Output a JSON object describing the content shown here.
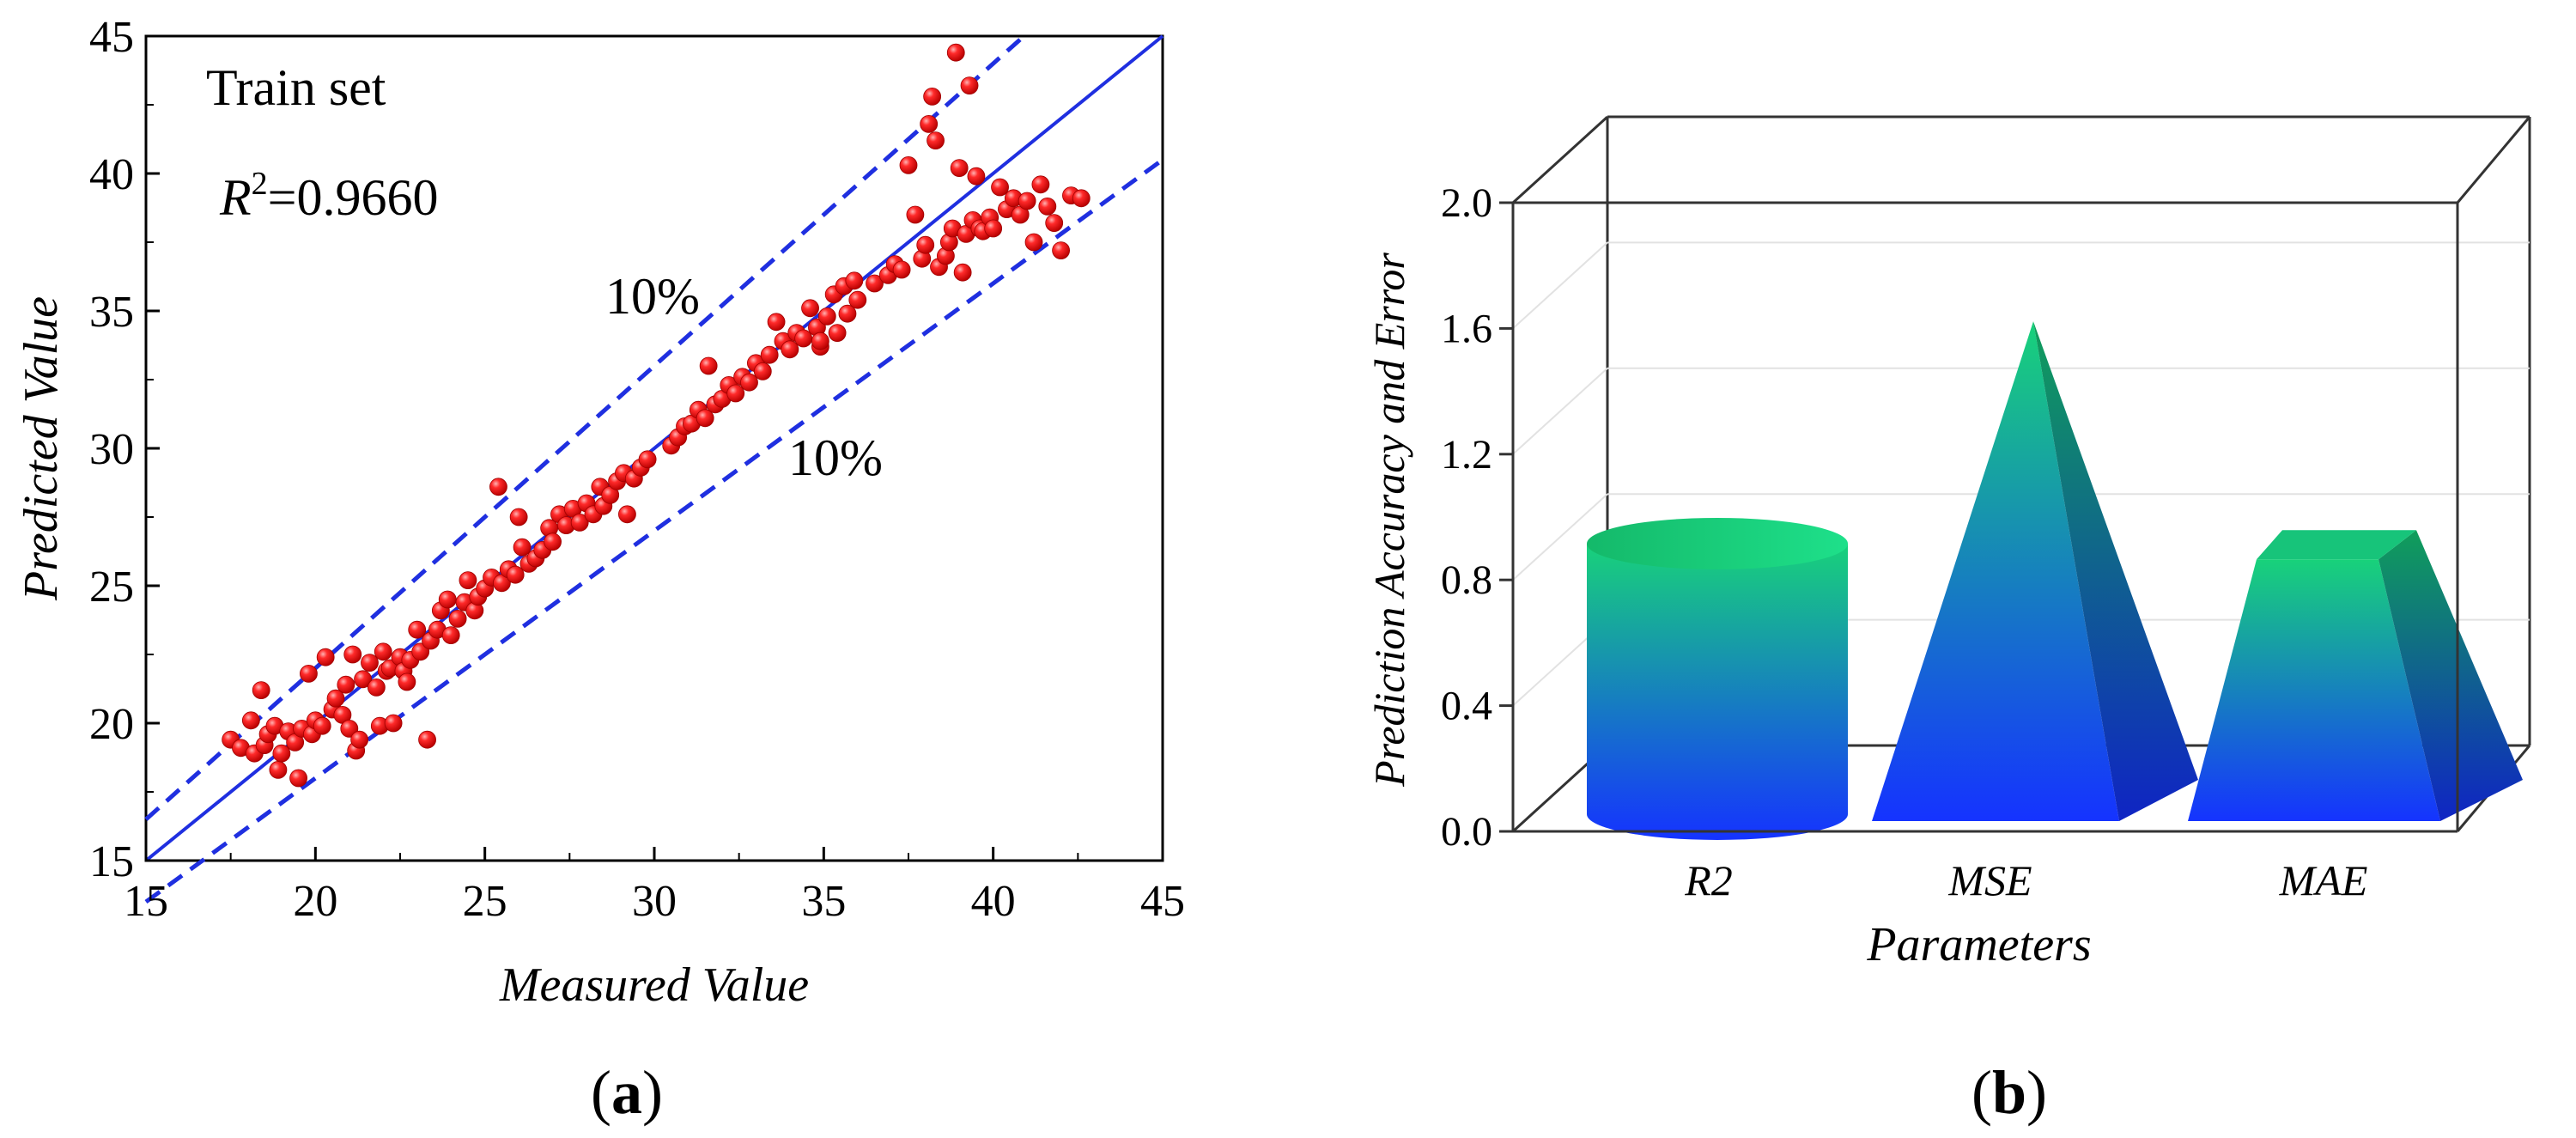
{
  "colors": {
    "points": "#ff1a1a",
    "fit_line": "#1f2fe0",
    "band_line": "#1f2fe0",
    "axis": "#000000",
    "bar_top": "#18d27a",
    "bar_bottom": "#1533ff"
  },
  "panels": {
    "a_label": "a",
    "b_label": "b"
  },
  "chart_data": [
    {
      "id": "a",
      "type": "scatter",
      "title": "Train set",
      "r2_symbol": "R",
      "r2_sup": "2",
      "r2_value": "=0.9660",
      "xlabel": "Measured Value",
      "ylabel": "Predicted Value",
      "xlim": [
        15,
        45
      ],
      "ylim": [
        15,
        45
      ],
      "xticks": [
        "15",
        "20",
        "25",
        "30",
        "35",
        "40",
        "45"
      ],
      "yticks": [
        "15",
        "20",
        "25",
        "30",
        "35",
        "40",
        "45"
      ],
      "band_upper_label": "10%",
      "band_lower_label": "10%",
      "lines": [
        {
          "name": "y=x",
          "style": "solid",
          "slope": 1.0
        },
        {
          "name": "+10%",
          "style": "dashed",
          "slope": 1.1
        },
        {
          "name": "-10%",
          "style": "dashed",
          "slope": 0.9
        }
      ],
      "points": [
        [
          17.5,
          19.4
        ],
        [
          17.8,
          19.1
        ],
        [
          18.1,
          20.1
        ],
        [
          18.2,
          18.9
        ],
        [
          18.4,
          21.2
        ],
        [
          18.5,
          19.2
        ],
        [
          18.6,
          19.6
        ],
        [
          18.8,
          19.9
        ],
        [
          18.9,
          18.3
        ],
        [
          19.0,
          18.9
        ],
        [
          19.2,
          19.7
        ],
        [
          19.4,
          19.3
        ],
        [
          19.5,
          18.0
        ],
        [
          19.6,
          19.8
        ],
        [
          19.8,
          21.8
        ],
        [
          19.9,
          19.6
        ],
        [
          20.0,
          20.1
        ],
        [
          20.2,
          19.9
        ],
        [
          20.3,
          22.4
        ],
        [
          20.5,
          20.5
        ],
        [
          20.6,
          20.9
        ],
        [
          20.8,
          20.3
        ],
        [
          20.9,
          21.4
        ],
        [
          21.0,
          19.8
        ],
        [
          21.1,
          22.5
        ],
        [
          21.2,
          19.0
        ],
        [
          21.3,
          19.4
        ],
        [
          21.4,
          21.6
        ],
        [
          21.6,
          22.2
        ],
        [
          21.8,
          21.3
        ],
        [
          21.9,
          19.9
        ],
        [
          22.0,
          22.6
        ],
        [
          22.1,
          21.9
        ],
        [
          22.2,
          22.0
        ],
        [
          22.3,
          20.0
        ],
        [
          22.5,
          22.4
        ],
        [
          22.6,
          21.9
        ],
        [
          22.8,
          22.3
        ],
        [
          23.0,
          23.4
        ],
        [
          23.1,
          22.6
        ],
        [
          23.3,
          19.4
        ],
        [
          23.4,
          23.0
        ],
        [
          23.6,
          23.4
        ],
        [
          23.7,
          24.1
        ],
        [
          23.9,
          24.5
        ],
        [
          24.0,
          23.2
        ],
        [
          24.2,
          23.8
        ],
        [
          24.4,
          24.4
        ],
        [
          24.5,
          25.2
        ],
        [
          24.7,
          24.1
        ],
        [
          24.8,
          24.6
        ],
        [
          25.0,
          24.9
        ],
        [
          25.2,
          25.3
        ],
        [
          25.4,
          28.6
        ],
        [
          25.5,
          25.1
        ],
        [
          25.7,
          25.6
        ],
        [
          25.9,
          25.4
        ],
        [
          26.0,
          27.5
        ],
        [
          26.1,
          26.4
        ],
        [
          26.3,
          25.8
        ],
        [
          26.5,
          26.0
        ],
        [
          26.7,
          26.3
        ],
        [
          26.9,
          27.1
        ],
        [
          27.0,
          26.6
        ],
        [
          27.2,
          27.6
        ],
        [
          27.4,
          27.2
        ],
        [
          27.6,
          27.8
        ],
        [
          27.8,
          27.3
        ],
        [
          28.0,
          28.0
        ],
        [
          28.2,
          27.6
        ],
        [
          28.4,
          28.6
        ],
        [
          28.5,
          27.9
        ],
        [
          28.7,
          28.3
        ],
        [
          28.9,
          28.8
        ],
        [
          29.1,
          29.1
        ],
        [
          29.2,
          27.6
        ],
        [
          29.4,
          28.9
        ],
        [
          29.6,
          29.3
        ],
        [
          29.8,
          29.6
        ],
        [
          30.5,
          30.1
        ],
        [
          30.7,
          30.4
        ],
        [
          30.9,
          30.8
        ],
        [
          31.1,
          30.9
        ],
        [
          31.3,
          31.4
        ],
        [
          31.5,
          31.1
        ],
        [
          31.6,
          33.0
        ],
        [
          31.8,
          31.6
        ],
        [
          32.0,
          31.8
        ],
        [
          32.2,
          32.3
        ],
        [
          32.4,
          32.0
        ],
        [
          32.6,
          32.6
        ],
        [
          32.8,
          32.4
        ],
        [
          33.0,
          33.1
        ],
        [
          33.2,
          32.8
        ],
        [
          33.4,
          33.4
        ],
        [
          33.6,
          34.6
        ],
        [
          33.8,
          33.9
        ],
        [
          34.0,
          33.6
        ],
        [
          34.2,
          34.2
        ],
        [
          34.4,
          34.0
        ],
        [
          34.6,
          35.1
        ],
        [
          34.8,
          34.4
        ],
        [
          34.9,
          33.7
        ],
        [
          35.1,
          34.8
        ],
        [
          35.3,
          35.6
        ],
        [
          35.4,
          34.2
        ],
        [
          35.6,
          35.9
        ],
        [
          35.7,
          34.9
        ],
        [
          35.9,
          36.1
        ],
        [
          36.0,
          35.4
        ],
        [
          36.5,
          36.0
        ],
        [
          36.9,
          36.3
        ],
        [
          37.1,
          36.7
        ],
        [
          37.3,
          36.5
        ],
        [
          37.5,
          40.3
        ],
        [
          37.7,
          38.5
        ],
        [
          37.9,
          36.9
        ],
        [
          38.0,
          37.4
        ],
        [
          38.1,
          41.8
        ],
        [
          38.2,
          42.8
        ],
        [
          38.3,
          41.2
        ],
        [
          38.4,
          36.6
        ],
        [
          38.6,
          37.0
        ],
        [
          38.7,
          37.5
        ],
        [
          38.8,
          38.0
        ],
        [
          38.9,
          44.4
        ],
        [
          39.0,
          40.2
        ],
        [
          39.1,
          36.4
        ],
        [
          39.2,
          37.8
        ],
        [
          39.3,
          43.2
        ],
        [
          39.4,
          38.3
        ],
        [
          39.5,
          39.9
        ],
        [
          39.6,
          38.0
        ],
        [
          39.7,
          37.9
        ],
        [
          39.9,
          38.4
        ],
        [
          40.0,
          38.0
        ],
        [
          40.2,
          39.5
        ],
        [
          40.4,
          38.7
        ],
        [
          40.6,
          39.1
        ],
        [
          40.8,
          38.5
        ],
        [
          41.0,
          39.0
        ],
        [
          41.2,
          37.5
        ],
        [
          41.4,
          39.6
        ],
        [
          41.6,
          38.8
        ],
        [
          41.8,
          38.2
        ],
        [
          42.0,
          37.2
        ],
        [
          42.3,
          39.2
        ],
        [
          42.6,
          39.1
        ],
        [
          34.9,
          33.9
        ],
        [
          22.7,
          21.5
        ]
      ]
    },
    {
      "id": "b",
      "type": "bar",
      "style": "3d-shapes",
      "xlabel": "Parameters",
      "ylabel": "Prediction Accuracy and Error",
      "ylim": [
        0.0,
        2.0
      ],
      "yticks": [
        "0.0",
        "0.4",
        "0.8",
        "1.2",
        "1.6",
        "2.0"
      ],
      "categories": [
        "R2",
        "MSE",
        "MAE"
      ],
      "shapes": [
        "cylinder",
        "pyramid",
        "frustum"
      ],
      "values": [
        0.97,
        1.65,
        0.92
      ]
    }
  ]
}
